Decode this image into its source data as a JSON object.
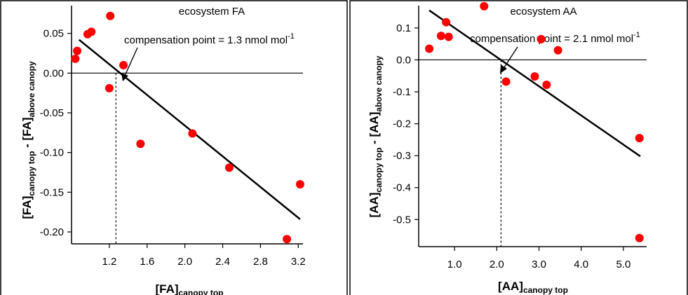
{
  "colors": {
    "points": "#ff0000",
    "lines": "#000000"
  },
  "chart_data": [
    {
      "type": "scatter",
      "title": "ecosystem FA",
      "annotation": "compensation point = 1.3 nmol mol",
      "annotation_superscript": "-1",
      "xlabel": {
        "main": "[FA]",
        "sub": "canopy top"
      },
      "ylabel": {
        "a": "[FA]",
        "a_sub": "canopy top",
        "dash": " - ",
        "b": "[FA]",
        "b_sub": "above canopy"
      },
      "xlim": [
        0.8,
        3.25
      ],
      "ylim": [
        -0.215,
        0.085
      ],
      "xticks": [
        1.2,
        1.6,
        2.0,
        2.4,
        2.8,
        3.2
      ],
      "xtick_labels": [
        "1.2",
        "1.6",
        "2.0",
        "2.4",
        "2.8",
        "3.2"
      ],
      "yticks": [
        0.05,
        0.0,
        -0.05,
        -0.1,
        -0.15,
        -0.2
      ],
      "ytick_labels": [
        "0.05",
        "0.00",
        "-0.05",
        "-0.10",
        "-0.15",
        "-0.20"
      ],
      "compensation_point": 1.27,
      "zero_line": true,
      "fit": {
        "x": [
          0.88,
          3.22
        ],
        "y": [
          0.042,
          -0.184
        ]
      },
      "points": {
        "x": [
          0.84,
          0.86,
          0.97,
          1.01,
          1.21,
          1.2,
          1.35,
          1.53,
          2.08,
          2.47,
          3.08,
          3.22
        ],
        "y": [
          0.018,
          0.028,
          0.049,
          0.052,
          0.072,
          -0.019,
          0.01,
          -0.089,
          -0.076,
          -0.119,
          -0.209,
          -0.14
        ]
      }
    },
    {
      "type": "scatter",
      "title": "ecosystem AA",
      "annotation": "compensation point = 2.1 nmol mol",
      "annotation_superscript": "-1",
      "xlabel": {
        "main": "[AA]",
        "sub": "canopy top"
      },
      "ylabel": {
        "a": "[AA]",
        "a_sub": "canopy top",
        "dash": " - ",
        "b": "[AA]",
        "b_sub": "above canopy"
      },
      "xlim": [
        0.15,
        5.55
      ],
      "ylim": [
        -0.585,
        0.17
      ],
      "xticks": [
        1.0,
        2.0,
        3.0,
        4.0,
        5.0
      ],
      "xtick_labels": [
        "1.0",
        "2.0",
        "3.0",
        "4.0",
        "5.0"
      ],
      "yticks": [
        0.1,
        0.0,
        -0.1,
        -0.2,
        -0.3,
        -0.4,
        -0.5
      ],
      "ytick_labels": [
        "0.1",
        "0.0",
        "-0.1",
        "-0.2",
        "-0.3",
        "-0.4",
        "-0.5"
      ],
      "compensation_point": 2.1,
      "zero_line": true,
      "fit": {
        "x": [
          0.4,
          5.4
        ],
        "y": [
          0.155,
          -0.302
        ]
      },
      "points": {
        "x": [
          0.4,
          0.68,
          0.8,
          0.86,
          1.7,
          2.22,
          2.9,
          3.05,
          3.18,
          3.45,
          5.38,
          5.38
        ],
        "y": [
          0.035,
          0.075,
          0.118,
          0.072,
          0.168,
          -0.068,
          -0.052,
          0.065,
          -0.078,
          0.03,
          -0.245,
          -0.558
        ]
      }
    }
  ]
}
